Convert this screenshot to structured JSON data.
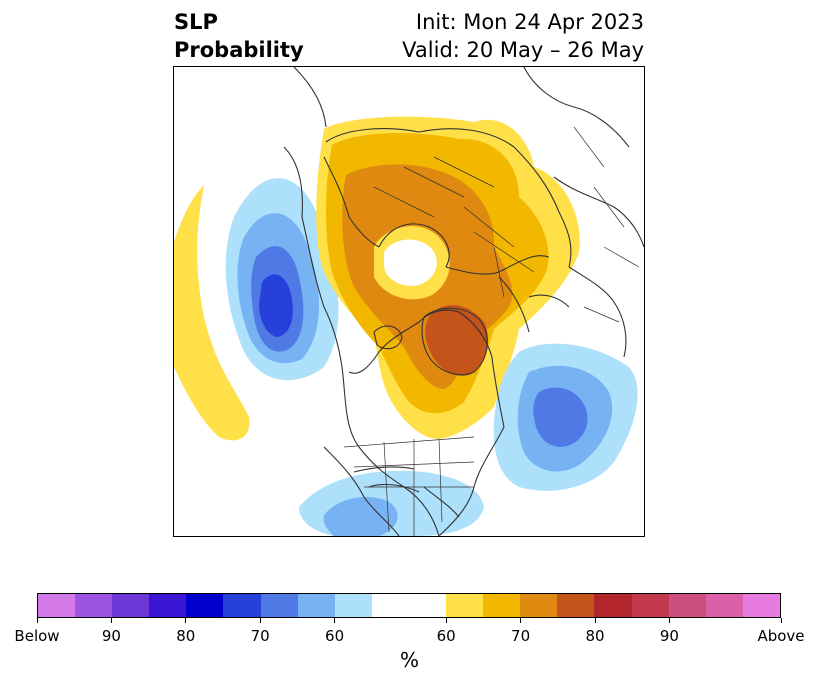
{
  "title": {
    "left_line1": "SLP",
    "left_line2": "Probability",
    "right_line1": "Init: Mon 24 Apr 2023",
    "right_line2": "Valid: 20 May – 26 May"
  },
  "colorbar": {
    "segments": [
      {
        "color": "#d47ae8"
      },
      {
        "color": "#9b55e0"
      },
      {
        "color": "#6d36d6"
      },
      {
        "color": "#3a16d2"
      },
      {
        "color": "#0000cc"
      },
      {
        "color": "#2541d9"
      },
      {
        "color": "#4f7ae6"
      },
      {
        "color": "#77b2f2"
      },
      {
        "color": "#ade0fb"
      },
      {
        "color": "#ffffff",
        "wide": true
      },
      {
        "color": "#ffe048"
      },
      {
        "color": "#f2b800"
      },
      {
        "color": "#e08910"
      },
      {
        "color": "#c4541a"
      },
      {
        "color": "#b2252a"
      },
      {
        "color": "#c2384d"
      },
      {
        "color": "#cd4f80"
      },
      {
        "color": "#dc60a8"
      },
      {
        "color": "#e87be0"
      }
    ],
    "tick_labels": [
      "Below",
      "90",
      "80",
      "70",
      "60",
      "60",
      "70",
      "80",
      "90",
      "Above"
    ],
    "unit_label": "%"
  },
  "map": {
    "below_colors": [
      "#ade0fb",
      "#77b2f2",
      "#4f7ae6",
      "#2541d9"
    ],
    "above_colors": [
      "#ffe048",
      "#f2b800",
      "#e08910",
      "#c4541a"
    ],
    "coastline_color": "#333333"
  }
}
